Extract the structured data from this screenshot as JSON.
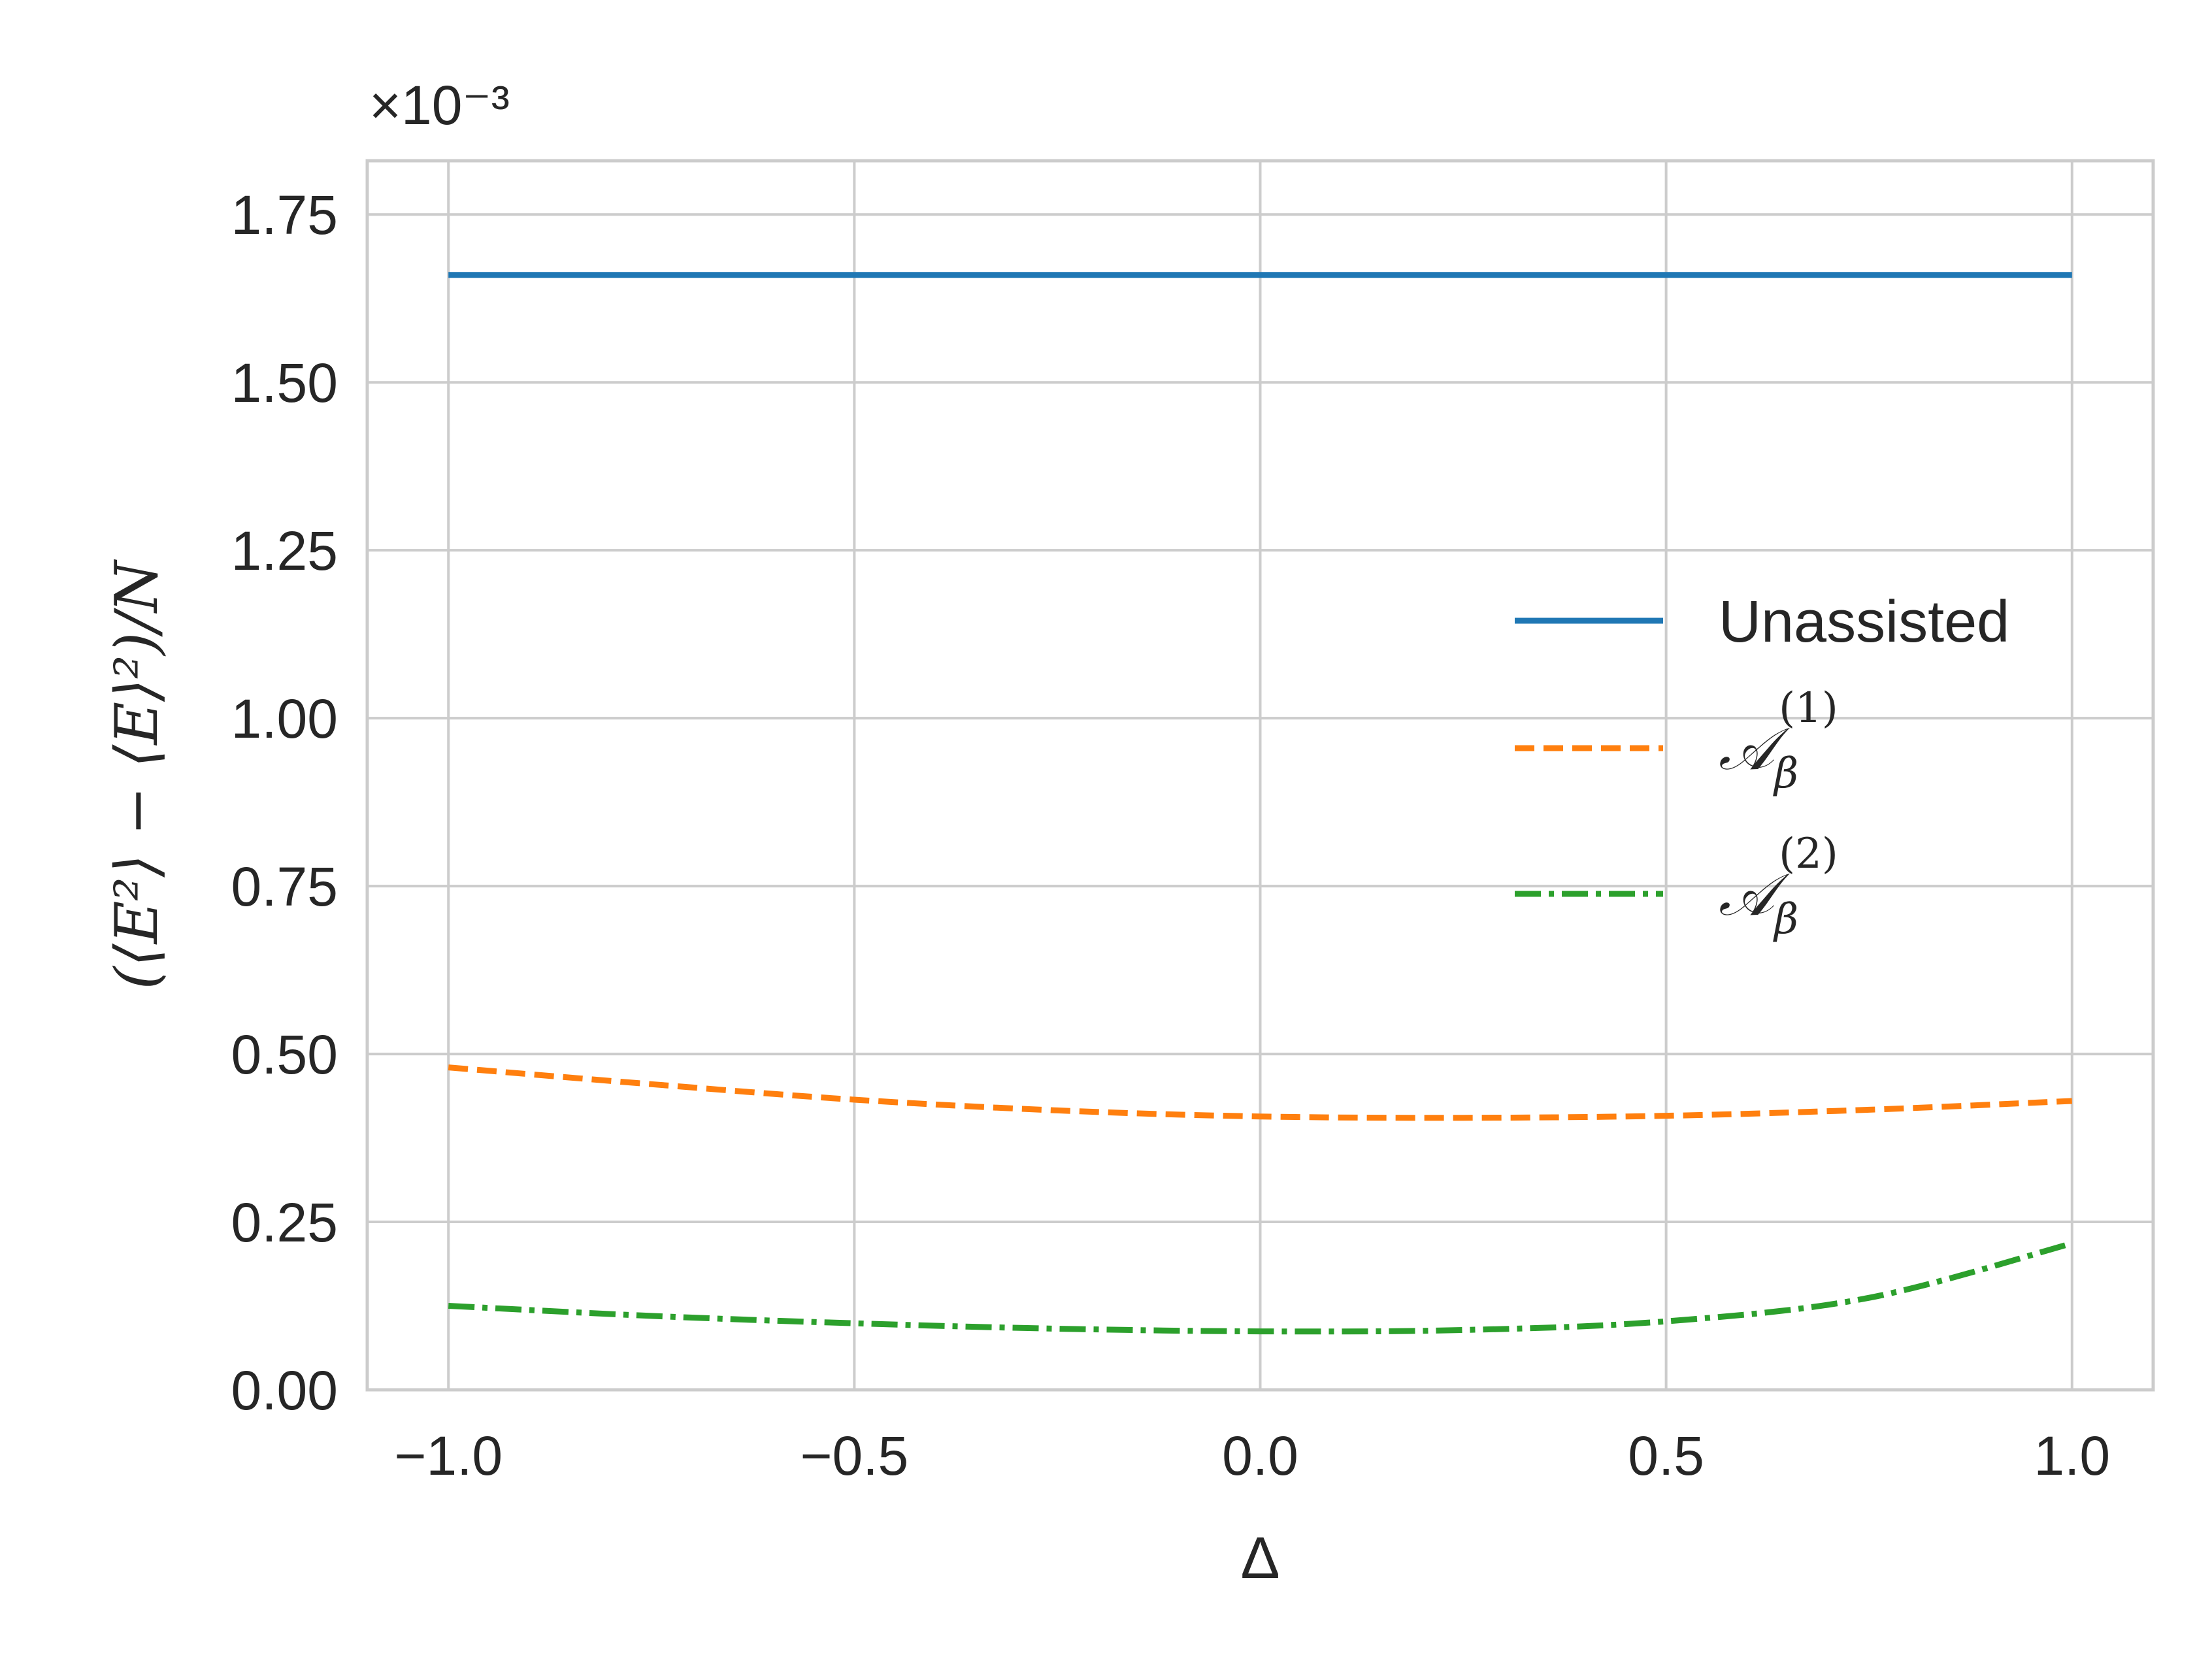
{
  "chart_data": {
    "type": "line",
    "xlabel": "Δ",
    "ylabel": "(⟨E²⟩ − ⟨E⟩²)/N",
    "y_offset_text": "×10⁻³",
    "xlim": [
      -1.1,
      1.1
    ],
    "ylim": [
      0,
      1.83
    ],
    "y_units_multiplier": 0.001,
    "x_ticks": [
      -1.0,
      -0.5,
      0.0,
      0.5,
      1.0
    ],
    "x_tick_labels": [
      "−1.0",
      "−0.5",
      "0.0",
      "0.5",
      "1.0"
    ],
    "y_ticks": [
      0.0,
      0.25,
      0.5,
      0.75,
      1.0,
      1.25,
      1.5,
      1.75
    ],
    "y_tick_labels": [
      "0.00",
      "0.25",
      "0.50",
      "0.75",
      "1.00",
      "1.25",
      "1.50",
      "1.75"
    ],
    "grid": true,
    "legend_position": "center-right",
    "x": [
      -1.0,
      -0.75,
      -0.5,
      -0.25,
      0.0,
      0.25,
      0.5,
      0.75,
      1.0
    ],
    "series": [
      {
        "name": "Unassisted",
        "color": "#1f77b4",
        "style": "solid",
        "values": [
          1.66,
          1.66,
          1.66,
          1.66,
          1.66,
          1.66,
          1.66,
          1.66,
          1.66
        ]
      },
      {
        "name": "A_β^(1)",
        "legend_symbol": "𝒜",
        "legend_sub": "β",
        "legend_sup": "(1)",
        "color": "#ff7f0e",
        "style": "dashed",
        "values": [
          0.48,
          0.455,
          0.432,
          0.416,
          0.407,
          0.405,
          0.408,
          0.417,
          0.43
        ]
      },
      {
        "name": "A_β^(2)",
        "legend_symbol": "𝒜",
        "legend_sub": "β",
        "legend_sup": "(2)",
        "color": "#2ca02c",
        "style": "dashdot",
        "values": [
          0.125,
          0.11,
          0.099,
          0.091,
          0.087,
          0.089,
          0.102,
          0.137,
          0.218
        ]
      }
    ]
  }
}
